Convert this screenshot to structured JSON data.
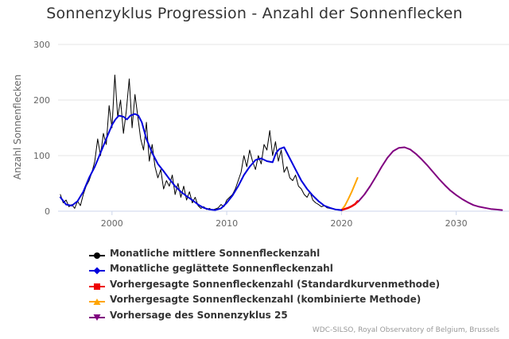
{
  "chart_data": {
    "type": "line",
    "title": "Sonnenzyklus Progression - Anzahl der Sonnenflecken",
    "ylabel": "Anzahl Sonnenflecken",
    "xlabel": "",
    "xlim": [
      1995.3,
      2034.6
    ],
    "ylim": [
      0,
      300
    ],
    "x_ticks": [
      "2000",
      "2010",
      "2020",
      "2030"
    ],
    "y_ticks": [
      "0",
      "100",
      "200",
      "300"
    ],
    "grid": "horizontal",
    "legend_position": "bottom-left",
    "credits": "WDC-SILSO, Royal Observatory of Belgium, Brussels",
    "series": [
      {
        "name": "Monatliche mittlere Sonnenfleckenzahl",
        "color": "#000000",
        "marker": "circle",
        "x": [
          1995.5,
          1995.75,
          1996.0,
          1996.25,
          1996.5,
          1996.75,
          1997.0,
          1997.25,
          1997.5,
          1997.75,
          1998.0,
          1998.25,
          1998.5,
          1998.75,
          1999.0,
          1999.25,
          1999.5,
          1999.75,
          2000.0,
          2000.25,
          2000.5,
          2000.75,
          2001.0,
          2001.25,
          2001.5,
          2001.75,
          2002.0,
          2002.25,
          2002.5,
          2002.75,
          2003.0,
          2003.25,
          2003.5,
          2003.75,
          2004.0,
          2004.25,
          2004.5,
          2004.75,
          2005.0,
          2005.25,
          2005.5,
          2005.75,
          2006.0,
          2006.25,
          2006.5,
          2006.75,
          2007.0,
          2007.25,
          2007.5,
          2007.75,
          2008.0,
          2008.25,
          2008.5,
          2008.75,
          2009.0,
          2009.25,
          2009.5,
          2009.75,
          2010.0,
          2010.25,
          2010.5,
          2010.75,
          2011.0,
          2011.25,
          2011.5,
          2011.75,
          2012.0,
          2012.25,
          2012.5,
          2012.75,
          2013.0,
          2013.25,
          2013.5,
          2013.75,
          2014.0,
          2014.25,
          2014.5,
          2014.75,
          2015.0,
          2015.25,
          2015.5,
          2015.75,
          2016.0,
          2016.25,
          2016.5,
          2016.75,
          2017.0,
          2017.25,
          2017.5,
          2017.75,
          2018.0,
          2018.25,
          2018.5,
          2018.75,
          2019.0,
          2019.25,
          2019.5,
          2019.75,
          2020.0
        ],
        "values": [
          30,
          15,
          20,
          8,
          12,
          5,
          18,
          10,
          30,
          45,
          55,
          70,
          90,
          130,
          100,
          140,
          120,
          190,
          150,
          245,
          170,
          200,
          140,
          180,
          238,
          150,
          210,
          170,
          130,
          110,
          160,
          90,
          120,
          80,
          60,
          75,
          40,
          55,
          45,
          65,
          30,
          50,
          25,
          45,
          20,
          35,
          15,
          25,
          10,
          5,
          8,
          3,
          5,
          2,
          4,
          6,
          12,
          8,
          20,
          25,
          30,
          40,
          55,
          70,
          100,
          80,
          110,
          90,
          75,
          100,
          85,
          120,
          110,
          145,
          100,
          125,
          90,
          110,
          70,
          80,
          60,
          55,
          65,
          45,
          40,
          30,
          25,
          35,
          20,
          15,
          12,
          8,
          10,
          6,
          5,
          4,
          3,
          2,
          2
        ]
      },
      {
        "name": "Monatliche geglättete Sonnenfleckenzahl",
        "color": "#0000dd",
        "marker": "diamond",
        "x": [
          1995.5,
          1996.0,
          1996.5,
          1997.0,
          1997.5,
          1998.0,
          1998.5,
          1999.0,
          1999.5,
          2000.0,
          2000.3,
          2000.6,
          2001.0,
          2001.3,
          2001.6,
          2002.0,
          2002.3,
          2002.6,
          2003.0,
          2003.5,
          2004.0,
          2004.5,
          2005.0,
          2005.5,
          2006.0,
          2006.5,
          2007.0,
          2007.5,
          2008.0,
          2008.5,
          2009.0,
          2009.5,
          2010.0,
          2010.5,
          2011.0,
          2011.5,
          2012.0,
          2012.5,
          2013.0,
          2013.5,
          2014.0,
          2014.3,
          2014.6,
          2015.0,
          2015.5,
          2016.0,
          2016.5,
          2017.0,
          2017.5,
          2018.0,
          2018.5,
          2019.0,
          2019.5,
          2020.0
        ],
        "values": [
          25,
          12,
          10,
          18,
          35,
          60,
          80,
          105,
          130,
          155,
          165,
          172,
          170,
          165,
          172,
          175,
          172,
          160,
          130,
          105,
          85,
          72,
          58,
          45,
          35,
          27,
          20,
          12,
          6,
          3,
          2,
          5,
          15,
          28,
          45,
          65,
          80,
          92,
          95,
          90,
          88,
          105,
          112,
          115,
          95,
          75,
          55,
          40,
          28,
          18,
          10,
          6,
          3,
          2
        ]
      },
      {
        "name": "Vorhergesagte Sonnenfleckenzahl (Standardkurvenmethode)",
        "color": "#ee0000",
        "marker": "square",
        "x": [
          2020.0,
          2020.3,
          2020.6,
          2020.9,
          2021.2,
          2021.4
        ],
        "values": [
          2,
          4,
          6,
          9,
          13,
          18
        ]
      },
      {
        "name": "Vorhergesagte Sonnenfleckenzahl (kombinierte Methode)",
        "color": "#ffa500",
        "marker": "triangle",
        "x": [
          2020.0,
          2020.3,
          2020.6,
          2020.9,
          2021.1,
          2021.4
        ],
        "values": [
          2,
          10,
          22,
          35,
          45,
          60
        ]
      },
      {
        "name": "Vorhersage des Sonnenzyklus 25",
        "color": "#800080",
        "marker": "triangle-down",
        "x": [
          2020.0,
          2020.5,
          2021.0,
          2021.5,
          2022.0,
          2022.5,
          2023.0,
          2023.5,
          2024.0,
          2024.5,
          2025.0,
          2025.5,
          2026.0,
          2026.5,
          2027.0,
          2027.5,
          2028.0,
          2028.5,
          2029.0,
          2029.5,
          2030.0,
          2030.5,
          2031.0,
          2031.5,
          2032.0,
          2032.5,
          2033.0,
          2033.5,
          2034.0
        ],
        "values": [
          2,
          5,
          10,
          18,
          30,
          45,
          62,
          80,
          96,
          108,
          114,
          115,
          111,
          103,
          93,
          82,
          70,
          58,
          47,
          37,
          29,
          22,
          16,
          11,
          8,
          6,
          4,
          3,
          2
        ]
      }
    ]
  }
}
